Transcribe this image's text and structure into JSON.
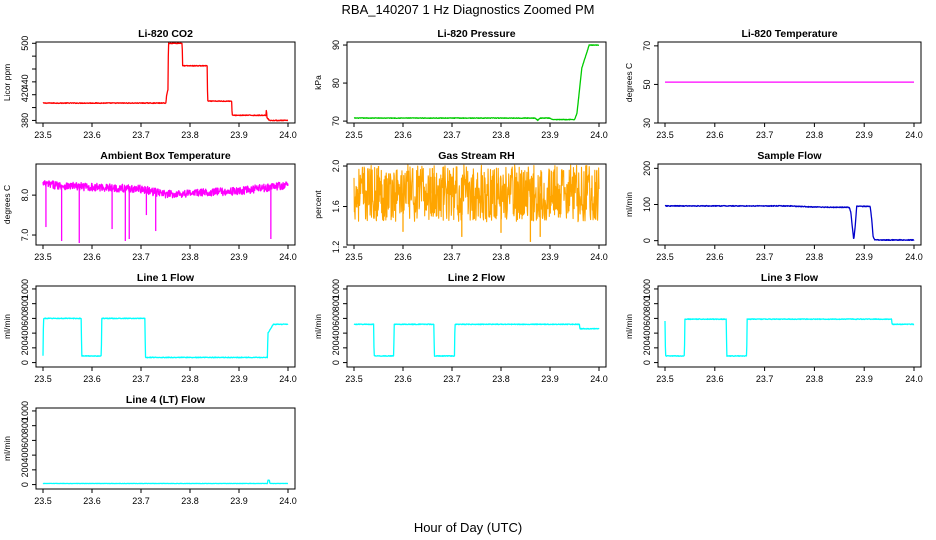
{
  "figure": {
    "title": "RBA_140207  1 Hz Diagnostics Zoomed PM",
    "xlabel": "Hour of Day (UTC)"
  },
  "chart_data": [
    {
      "type": "line",
      "title": "Li-820 CO2",
      "ylabel": "Licor ppm",
      "color": "#ff0000",
      "noise": 0.6,
      "xlim": [
        23.5,
        24.0
      ],
      "ylim": [
        376,
        502
      ],
      "xticks": [
        23.5,
        23.6,
        23.7,
        23.8,
        23.9,
        24.0
      ],
      "xtick_labels": [
        "23.5",
        "23.6",
        "23.7",
        "23.8",
        "23.9",
        "24.0"
      ],
      "yticks": [
        380,
        400,
        420,
        440,
        460,
        480,
        500
      ],
      "ytick_labels": [
        "380",
        "",
        "420",
        "440",
        "",
        "",
        "500"
      ],
      "x": [
        23.5,
        23.751,
        23.752,
        23.755,
        23.756,
        23.784,
        23.785,
        23.835,
        23.836,
        23.885,
        23.886,
        23.955,
        23.956,
        23.957,
        23.958,
        23.96,
        23.961,
        23.99,
        24.0
      ],
      "values": [
        407,
        407,
        418,
        428,
        500,
        500,
        465,
        465,
        410,
        410,
        388,
        388,
        398,
        385,
        383,
        383,
        380,
        380,
        380
      ]
    },
    {
      "type": "line",
      "title": "Li-820 Pressure",
      "ylabel": "kPa",
      "color": "#00cc00",
      "noise": 0.08,
      "xlim": [
        23.5,
        24.0
      ],
      "ylim": [
        69.5,
        90.8
      ],
      "xticks": [
        23.5,
        23.6,
        23.7,
        23.8,
        23.9,
        24.0
      ],
      "xtick_labels": [
        "23.5",
        "23.6",
        "23.7",
        "23.8",
        "23.9",
        "24.0"
      ],
      "yticks": [
        70,
        80,
        90
      ],
      "ytick_labels": [
        "70",
        "80",
        "90"
      ],
      "x": [
        23.5,
        23.87,
        23.875,
        23.88,
        23.9,
        23.905,
        23.95,
        23.955,
        23.96,
        23.965,
        23.975,
        23.98,
        23.99,
        24.0
      ],
      "values": [
        70.8,
        70.8,
        70.2,
        70.8,
        70.8,
        70.4,
        70.4,
        72,
        78,
        84,
        88,
        90,
        90,
        90
      ]
    },
    {
      "type": "line",
      "title": "Li-820 Temperature",
      "ylabel": "degrees C",
      "color": "#ff00ff",
      "noise": 0,
      "xlim": [
        23.5,
        24.0
      ],
      "ylim": [
        30,
        72
      ],
      "xticks": [
        23.5,
        23.6,
        23.7,
        23.8,
        23.9,
        24.0
      ],
      "xtick_labels": [
        "23.5",
        "23.6",
        "23.7",
        "23.8",
        "23.9",
        "24.0"
      ],
      "yticks": [
        30,
        50,
        70
      ],
      "ytick_labels": [
        "30",
        "50",
        "70"
      ],
      "x": [
        23.5,
        24.0
      ],
      "values": [
        51.2,
        51.2
      ]
    },
    {
      "type": "line",
      "title": "Ambient Box Temperature",
      "ylabel": "degrees C",
      "color": "#ff00ff",
      "noise": 0.1,
      "spikes": [
        [
          23.506,
          7.2
        ],
        [
          23.538,
          6.85
        ],
        [
          23.574,
          6.8
        ],
        [
          23.641,
          7.15
        ],
        [
          23.668,
          6.85
        ],
        [
          23.676,
          6.9
        ],
        [
          23.711,
          7.5
        ],
        [
          23.73,
          7.1
        ],
        [
          23.965,
          6.9
        ]
      ],
      "xlim": [
        23.5,
        24.0
      ],
      "ylim": [
        6.75,
        8.78
      ],
      "xticks": [
        23.5,
        23.6,
        23.7,
        23.8,
        23.9,
        24.0
      ],
      "xtick_labels": [
        "23.5",
        "23.6",
        "23.7",
        "23.8",
        "23.9",
        "24.0"
      ],
      "yticks": [
        7.0,
        8.0
      ],
      "ytick_labels": [
        "7.0",
        "8.0"
      ],
      "x": [
        23.5,
        23.55,
        23.6,
        23.65,
        23.7,
        23.75,
        23.8,
        23.85,
        23.9,
        23.95,
        24.0
      ],
      "values": [
        8.28,
        8.23,
        8.2,
        8.18,
        8.15,
        8.02,
        8.05,
        8.08,
        8.1,
        8.18,
        8.25
      ]
    },
    {
      "type": "line",
      "title": "Gas Stream RH",
      "ylabel": "percent",
      "color": "#ffa500",
      "noise": 0.28,
      "spikes": [
        [
          23.6,
          1.35
        ],
        [
          23.72,
          1.3
        ],
        [
          23.8,
          1.34
        ],
        [
          23.86,
          1.25
        ],
        [
          23.88,
          1.3
        ],
        [
          23.55,
          2.0
        ],
        [
          23.66,
          1.98
        ]
      ],
      "xlim": [
        23.5,
        24.0
      ],
      "ylim": [
        1.22,
        2.02
      ],
      "xticks": [
        23.5,
        23.6,
        23.7,
        23.8,
        23.9,
        24.0
      ],
      "xtick_labels": [
        "23.5",
        "23.6",
        "23.7",
        "23.8",
        "23.9",
        "24.0"
      ],
      "yticks": [
        1.2,
        1.6,
        2.0
      ],
      "ytick_labels": [
        "1.2",
        "1.6",
        "2.0"
      ],
      "x": [
        23.5,
        24.0
      ],
      "values": [
        1.73,
        1.73
      ]
    },
    {
      "type": "line",
      "title": "Sample Flow",
      "ylabel": "ml/min",
      "color": "#0000cc",
      "noise": 1.2,
      "xlim": [
        23.5,
        24.0
      ],
      "ylim": [
        -12,
        212
      ],
      "xticks": [
        23.5,
        23.6,
        23.7,
        23.8,
        23.9,
        24.0
      ],
      "xtick_labels": [
        "23.5",
        "23.6",
        "23.7",
        "23.8",
        "23.9",
        "24.0"
      ],
      "yticks": [
        0,
        100,
        200
      ],
      "ytick_labels": [
        "0",
        "100",
        "200"
      ],
      "x": [
        23.5,
        23.75,
        23.8,
        23.87,
        23.873,
        23.876,
        23.879,
        23.882,
        23.885,
        23.912,
        23.915,
        23.918,
        23.921,
        23.99,
        24.0
      ],
      "values": [
        96,
        96,
        93,
        92,
        80,
        40,
        2,
        40,
        95,
        95,
        60,
        10,
        2,
        2,
        2
      ]
    },
    {
      "type": "line",
      "title": "Line 1 Flow",
      "ylabel": "ml/min",
      "color": "#00ffff",
      "noise": 5,
      "xlim": [
        23.5,
        24.0
      ],
      "ylim": [
        -60,
        1040
      ],
      "xticks": [
        23.5,
        23.6,
        23.7,
        23.8,
        23.9,
        24.0
      ],
      "xtick_labels": [
        "23.5",
        "23.6",
        "23.7",
        "23.8",
        "23.9",
        "24.0"
      ],
      "yticks": [
        0,
        200,
        400,
        600,
        800,
        1000
      ],
      "ytick_labels": [
        "0",
        "200",
        "400",
        "600",
        "800",
        "1000"
      ],
      "x": [
        23.5,
        23.501,
        23.578,
        23.579,
        23.619,
        23.62,
        23.708,
        23.709,
        23.958,
        23.959,
        23.97,
        24.0
      ],
      "values": [
        90,
        600,
        600,
        90,
        90,
        600,
        600,
        70,
        70,
        400,
        520,
        520
      ]
    },
    {
      "type": "line",
      "title": "Line 2 Flow",
      "ylabel": "ml/min",
      "color": "#00ffff",
      "noise": 5,
      "xlim": [
        23.5,
        24.0
      ],
      "ylim": [
        -60,
        1040
      ],
      "xticks": [
        23.5,
        23.6,
        23.7,
        23.8,
        23.9,
        24.0
      ],
      "xtick_labels": [
        "23.5",
        "23.6",
        "23.7",
        "23.8",
        "23.9",
        "24.0"
      ],
      "yticks": [
        0,
        200,
        400,
        600,
        800,
        1000
      ],
      "ytick_labels": [
        "0",
        "200",
        "400",
        "600",
        "800",
        "1000"
      ],
      "x": [
        23.5,
        23.54,
        23.541,
        23.581,
        23.582,
        23.663,
        23.664,
        23.705,
        23.706,
        23.96,
        23.961,
        24.0
      ],
      "values": [
        520,
        520,
        90,
        90,
        520,
        520,
        90,
        90,
        520,
        520,
        460,
        460
      ]
    },
    {
      "type": "line",
      "title": "Line 3 Flow",
      "ylabel": "ml/min",
      "color": "#00ffff",
      "noise": 5,
      "xlim": [
        23.5,
        24.0
      ],
      "ylim": [
        -60,
        1040
      ],
      "xticks": [
        23.5,
        23.6,
        23.7,
        23.8,
        23.9,
        24.0
      ],
      "xtick_labels": [
        "23.5",
        "23.6",
        "23.7",
        "23.8",
        "23.9",
        "24.0"
      ],
      "yticks": [
        0,
        200,
        400,
        600,
        800,
        1000
      ],
      "ytick_labels": [
        "0",
        "200",
        "400",
        "600",
        "800",
        "1000"
      ],
      "x": [
        23.5,
        23.501,
        23.502,
        23.539,
        23.54,
        23.623,
        23.624,
        23.664,
        23.665,
        23.955,
        23.956,
        24.0
      ],
      "values": [
        560,
        90,
        90,
        90,
        590,
        590,
        90,
        90,
        590,
        590,
        520,
        520
      ]
    },
    {
      "type": "line",
      "title": "Line 4 (LT) Flow",
      "ylabel": "ml/min",
      "color": "#00ffff",
      "noise": 2,
      "xlim": [
        23.5,
        24.0
      ],
      "ylim": [
        -60,
        1040
      ],
      "xticks": [
        23.5,
        23.6,
        23.7,
        23.8,
        23.9,
        24.0
      ],
      "xtick_labels": [
        "23.5",
        "23.6",
        "23.7",
        "23.8",
        "23.9",
        "24.0"
      ],
      "yticks": [
        0,
        200,
        400,
        600,
        800,
        1000
      ],
      "ytick_labels": [
        "0",
        "200",
        "400",
        "600",
        "800",
        "1000"
      ],
      "x": [
        23.5,
        23.958,
        23.959,
        23.962,
        23.963,
        24.0
      ],
      "values": [
        15,
        15,
        60,
        60,
        15,
        15
      ]
    }
  ]
}
